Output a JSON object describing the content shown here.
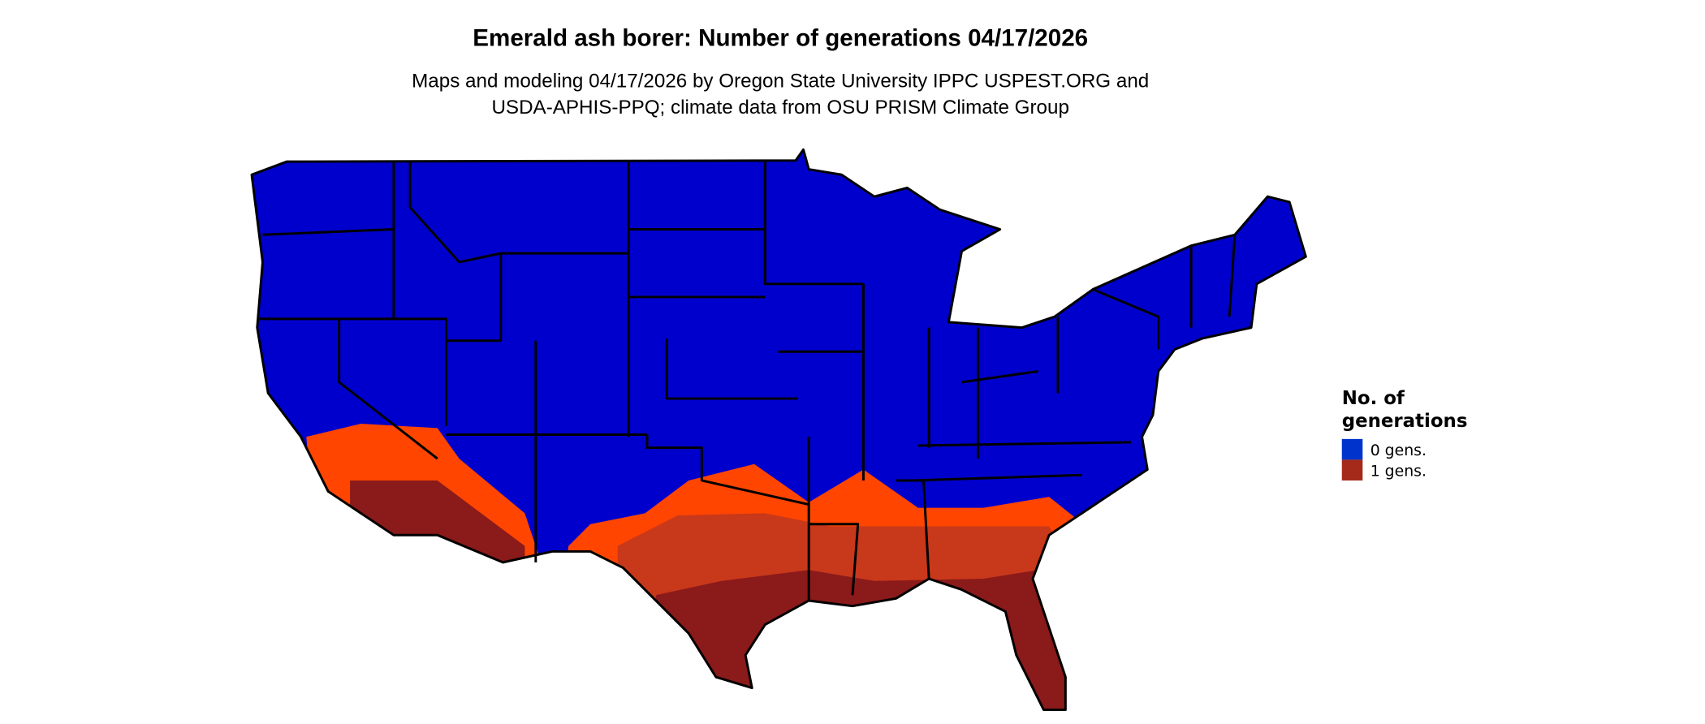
{
  "title": "Emerald ash borer: Number of generations 04/17/2026",
  "subtitle_line1": "Maps and modeling 04/17/2026 by Oregon State University IPPC USPEST.ORG and",
  "subtitle_line2": "USDA-APHIS-PPQ; climate data from OSU PRISM Climate Group",
  "legend": {
    "title_line1": "No. of",
    "title_line2": "generations",
    "items": [
      {
        "label": "0 gens.",
        "color": "#0033cc"
      },
      {
        "label": "1 gens.",
        "color": "#a52a1a"
      }
    ]
  },
  "map_colors": {
    "zero_gens": "#0000cc",
    "low": "#ff4500",
    "mid": "#c8381a",
    "high": "#8b1a1a"
  }
}
